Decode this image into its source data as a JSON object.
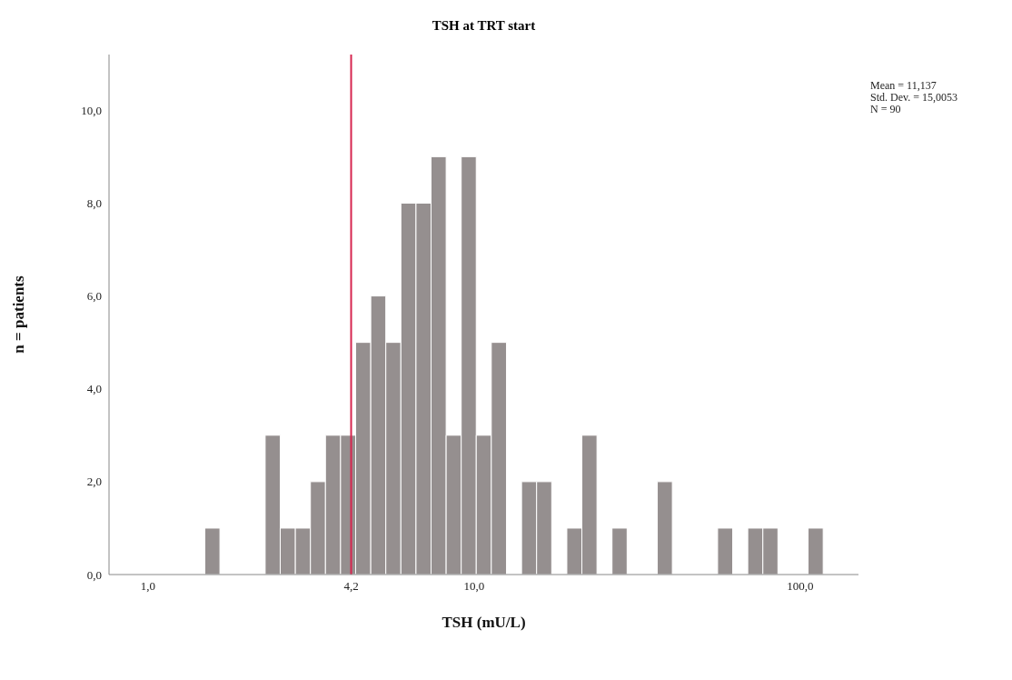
{
  "chart_data": {
    "type": "histogram",
    "title": "TSH at TRT start",
    "xlabel": "TSH (mU/L)",
    "ylabel": "n = patients",
    "bins": [
      1.495,
      1.663,
      1.85,
      2.058,
      2.289,
      2.546,
      2.833,
      3.151,
      3.504,
      3.898,
      4.336,
      4.825,
      5.365,
      5.968,
      6.64,
      7.385,
      8.215,
      9.138,
      10.16,
      11.3,
      12.58,
      13.99,
      15.56,
      17.31,
      19.26,
      21.42,
      23.83,
      26.5,
      29.48,
      32.79,
      36.48,
      40.57,
      45.13,
      50.2,
      55.85,
      62.12,
      69.1,
      76.87,
      85.5,
      95.11,
      105.8,
      117.7
    ],
    "values": [
      1,
      0,
      0,
      0,
      3,
      1,
      1,
      2,
      3,
      3,
      5,
      6,
      5,
      8,
      8,
      9,
      3,
      9,
      3,
      5,
      0,
      2,
      2,
      0,
      1,
      3,
      0,
      1,
      0,
      0,
      2,
      0,
      0,
      0,
      1,
      0,
      1,
      1,
      0,
      0,
      1
    ],
    "color": "#958f8f",
    "log": "x",
    "xlim": [
      0.76,
      151
    ],
    "xticks": [
      {
        "value": 1,
        "label": "1,0"
      },
      {
        "value": 4.2,
        "label": "4,2"
      },
      {
        "value": 10,
        "label": "10,0"
      },
      {
        "value": 100,
        "label": "100,0"
      }
    ],
    "ylim": [
      0,
      11.2
    ],
    "yticks": [
      {
        "value": 0,
        "label": "0,0"
      },
      {
        "value": 2,
        "label": "2,0"
      },
      {
        "value": 4,
        "label": "4,0"
      },
      {
        "value": 6,
        "label": "6,0"
      },
      {
        "value": 8,
        "label": "8,0"
      },
      {
        "value": 10,
        "label": "10,0"
      }
    ],
    "ref_lines": [
      {
        "axis": "x",
        "value": 4.2,
        "color": "#d6264f"
      }
    ],
    "annotations": [
      "Mean = 11,137",
      "Std. Dev. = 15,0053",
      "N = 90"
    ]
  }
}
